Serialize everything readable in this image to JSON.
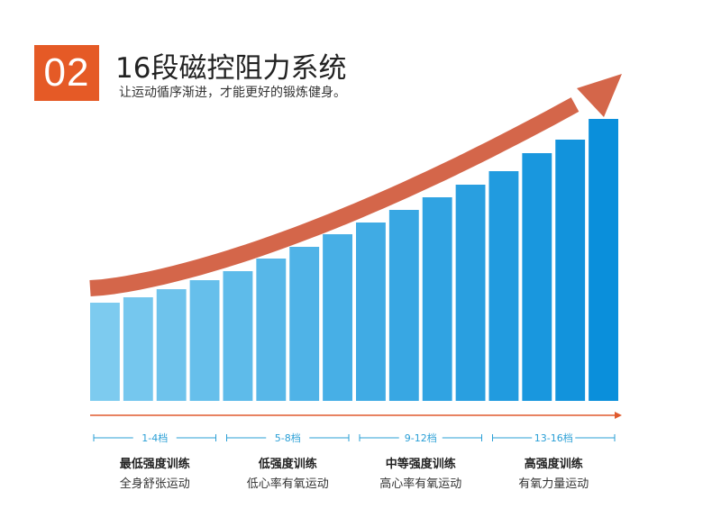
{
  "header": {
    "number": "02",
    "title": "16段磁控阻力系统",
    "subtitle": "让运动循序渐进，才能更好的锻炼健身。"
  },
  "colors": {
    "accent": "#e55a26",
    "arrow": "#d4664a",
    "bar_light": "#7dcbef",
    "bar_dark": "#0a8fdb",
    "axis": "#e05a2e",
    "range_label": "#2a9fd6"
  },
  "chart_data": {
    "type": "bar",
    "categories": [
      "1",
      "2",
      "3",
      "4",
      "5",
      "6",
      "7",
      "8",
      "9",
      "10",
      "11",
      "12",
      "13",
      "14",
      "15",
      "16"
    ],
    "values": [
      109,
      115,
      124,
      134,
      144,
      158,
      171,
      185,
      198,
      212,
      226,
      240,
      255,
      275,
      290,
      313
    ],
    "groups": [
      {
        "range": "1-4档",
        "level": "最低强度训练",
        "desc": "全身舒张运动"
      },
      {
        "range": "5-8档",
        "level": "低强度训练",
        "desc": "低心率有氧运动"
      },
      {
        "range": "9-12档",
        "level": "中等强度训练",
        "desc": "高心率有氧运动"
      },
      {
        "range": "13-16档",
        "level": "高强度训练",
        "desc": "有氧力量运动"
      }
    ]
  }
}
